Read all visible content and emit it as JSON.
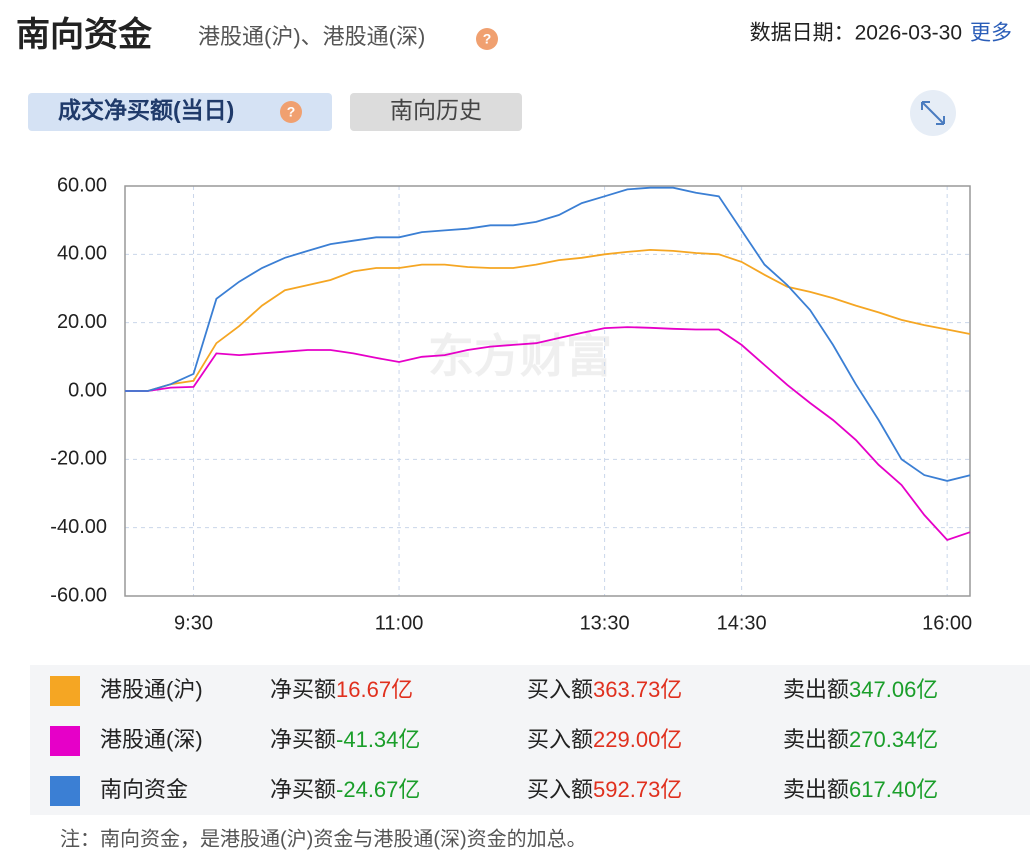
{
  "header": {
    "title": "南向资金",
    "subtitle": "港股通(沪)、港股通(深)",
    "date": "数据日期：2026-03-30",
    "more": "更多"
  },
  "tabs": [
    "成交净买额(当日)",
    "南向历史"
  ],
  "chart_data": {
    "type": "line",
    "watermark": "东方财富",
    "x": [
      0,
      10,
      20,
      30,
      40,
      50,
      60,
      70,
      80,
      90,
      100,
      110,
      120,
      130,
      140,
      150,
      160,
      170,
      180,
      190,
      200,
      210,
      220,
      230,
      240,
      250,
      260,
      270,
      280,
      290,
      300,
      310,
      320,
      330,
      340,
      350,
      360,
      370
    ],
    "series": [
      {
        "name": "港股通(沪)",
        "color": "#f5a623",
        "values": [
          0,
          0,
          2,
          3,
          14,
          19,
          25,
          29.5,
          31,
          32.5,
          35,
          36,
          36,
          37,
          37,
          36.3,
          36,
          36,
          37,
          38.3,
          39,
          40,
          40.7,
          41.3,
          41,
          40.4,
          40,
          37.8,
          34,
          30.5,
          29,
          27.2,
          25,
          23,
          20.8,
          19.3,
          18,
          16.67
        ]
      },
      {
        "name": "港股通(深)",
        "color": "#e600c8",
        "values": [
          0,
          0,
          1,
          1.2,
          11,
          10.5,
          11,
          11.5,
          12,
          12,
          11,
          9.7,
          8.5,
          10,
          10.5,
          12,
          13,
          13.5,
          14,
          15.5,
          17,
          18.4,
          18.7,
          18.5,
          18.2,
          18,
          18,
          13.5,
          7.6,
          1.8,
          -3.5,
          -8.5,
          -14.3,
          -21.6,
          -27.5,
          -36.3,
          -43.6,
          -41.34
        ]
      },
      {
        "name": "南向资金",
        "color": "#3b7fd4",
        "values": [
          0,
          0,
          2,
          5,
          27,
          32,
          36,
          39,
          41,
          43,
          44,
          45,
          45,
          46.5,
          47,
          47.5,
          48.5,
          48.5,
          49.5,
          51.5,
          55,
          57,
          59,
          59.5,
          59.5,
          58,
          57,
          47,
          37,
          31,
          23.7,
          13.5,
          2,
          -8.5,
          -20,
          -24.6,
          -26.3,
          -24.67
        ]
      }
    ],
    "xlim": [
      0,
      370
    ],
    "xticks": [
      {
        "value": 30,
        "label": "9:30"
      },
      {
        "value": 120,
        "label": "11:00"
      },
      {
        "value": 210,
        "label": "13:30"
      },
      {
        "value": 270,
        "label": "14:30"
      },
      {
        "value": 360,
        "label": "16:00"
      }
    ],
    "ylim": [
      -60,
      60
    ],
    "yticks": [
      {
        "value": 60,
        "label": "60.00"
      },
      {
        "value": 40,
        "label": "40.00"
      },
      {
        "value": 20,
        "label": "20.00"
      },
      {
        "value": 0,
        "label": "0.00"
      },
      {
        "value": -20,
        "label": "-20.00"
      },
      {
        "value": -40,
        "label": "-40.00"
      },
      {
        "value": -60,
        "label": "-60.00"
      }
    ],
    "grid": true
  },
  "table": {
    "columns": [
      "净买额",
      "买入额",
      "卖出额"
    ],
    "up_color": "#e0301e",
    "down_color": "#1a9e2a",
    "rows": [
      {
        "net": "16.67亿",
        "buy": "363.73亿",
        "sell": "347.06亿"
      },
      {
        "net": "-41.34亿",
        "buy": "229.00亿",
        "sell": "270.34亿"
      },
      {
        "net": "-24.67亿",
        "buy": "592.73亿",
        "sell": "617.40亿"
      }
    ]
  },
  "note": "注：南向资金，是港股通(沪)资金与港股通(深)资金的加总。"
}
